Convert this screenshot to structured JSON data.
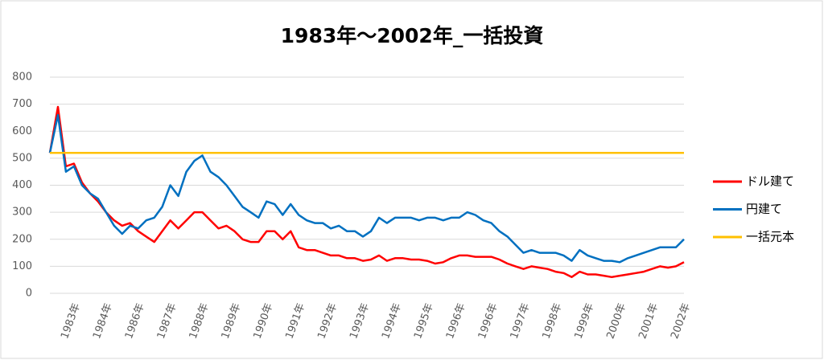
{
  "chart_data": {
    "type": "line",
    "title": "1983年〜2002年_一括投資",
    "categories": [
      null,
      null,
      null,
      "1983年",
      null,
      null,
      null,
      "1984年",
      null,
      null,
      null,
      "1986年",
      null,
      null,
      null,
      "1987年",
      null,
      null,
      null,
      "1988年",
      null,
      null,
      null,
      "1989年",
      null,
      null,
      null,
      "1990年",
      null,
      null,
      null,
      "1991年",
      null,
      null,
      null,
      "1992年",
      null,
      null,
      null,
      "1993年",
      null,
      null,
      null,
      "1994年",
      null,
      null,
      null,
      "1995年",
      null,
      null,
      null,
      "1996年",
      null,
      null,
      null,
      "1996年",
      null,
      null,
      null,
      "1997年",
      null,
      null,
      null,
      "1998年",
      null,
      null,
      null,
      "1999年",
      null,
      null,
      null,
      "2000年",
      null,
      null,
      null,
      "2001年",
      null,
      null,
      null,
      "2002年"
    ],
    "series": [
      {
        "name": "ドル建て",
        "color": "#ff0000",
        "values": [
          520,
          690,
          470,
          480,
          410,
          370,
          340,
          300,
          270,
          250,
          260,
          230,
          210,
          190,
          230,
          270,
          240,
          270,
          300,
          300,
          270,
          240,
          250,
          230,
          200,
          190,
          190,
          230,
          230,
          200,
          230,
          170,
          160,
          160,
          150,
          140,
          140,
          130,
          130,
          120,
          125,
          140,
          120,
          130,
          130,
          125,
          125,
          120,
          110,
          115,
          130,
          140,
          140,
          135,
          135,
          135,
          125,
          110,
          100,
          90,
          100,
          95,
          90,
          80,
          75,
          60,
          80,
          70,
          70,
          65,
          60,
          65,
          70,
          75,
          80,
          90,
          100,
          95,
          100,
          115
        ]
      },
      {
        "name": "円建て",
        "color": "#0070c0",
        "values": [
          520,
          660,
          450,
          470,
          400,
          370,
          350,
          300,
          250,
          220,
          250,
          240,
          270,
          280,
          320,
          400,
          360,
          450,
          490,
          510,
          450,
          430,
          400,
          360,
          320,
          300,
          280,
          340,
          330,
          290,
          330,
          290,
          270,
          260,
          260,
          240,
          250,
          230,
          230,
          210,
          230,
          280,
          260,
          280,
          280,
          280,
          270,
          280,
          280,
          270,
          280,
          280,
          300,
          290,
          270,
          260,
          230,
          210,
          180,
          150,
          160,
          150,
          150,
          150,
          140,
          120,
          160,
          140,
          130,
          120,
          120,
          115,
          130,
          140,
          150,
          160,
          170,
          170,
          170,
          200
        ]
      },
      {
        "name": "一括元本",
        "color": "#ffc000",
        "values": [
          520,
          520,
          520,
          520,
          520,
          520,
          520,
          520,
          520,
          520,
          520,
          520,
          520,
          520,
          520,
          520,
          520,
          520,
          520,
          520,
          520,
          520,
          520,
          520,
          520,
          520,
          520,
          520,
          520,
          520,
          520,
          520,
          520,
          520,
          520,
          520,
          520,
          520,
          520,
          520,
          520,
          520,
          520,
          520,
          520,
          520,
          520,
          520,
          520,
          520,
          520,
          520,
          520,
          520,
          520,
          520,
          520,
          520,
          520,
          520,
          520,
          520,
          520,
          520,
          520,
          520,
          520,
          520,
          520,
          520,
          520,
          520,
          520,
          520,
          520,
          520,
          520,
          520,
          520,
          520
        ]
      }
    ],
    "ylim": [
      0,
      800
    ],
    "yticks": [
      0,
      100,
      200,
      300,
      400,
      500,
      600,
      700,
      800
    ],
    "grid": true,
    "legend": "right"
  }
}
